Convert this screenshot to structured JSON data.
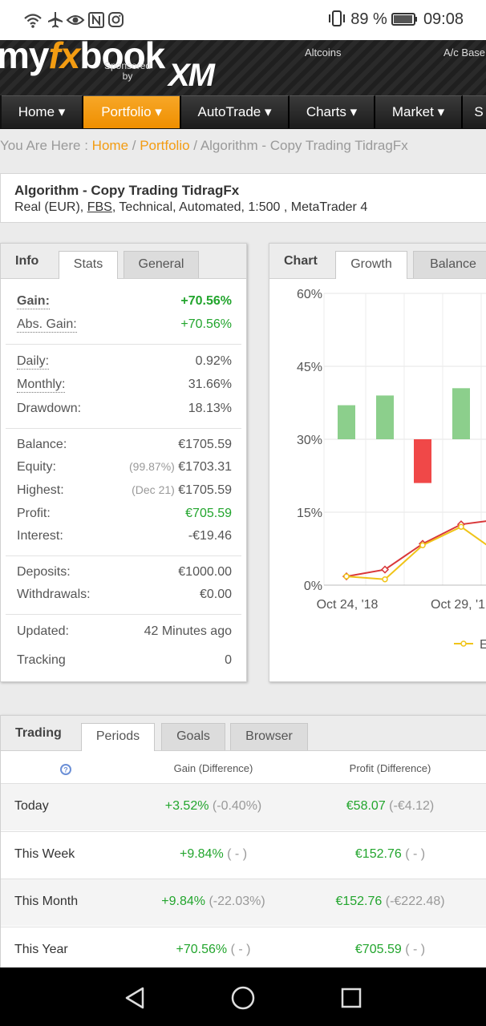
{
  "status_bar": {
    "icons": "wifi airplane eye nfc instagram",
    "battery_pct": "89 %",
    "time": "09:08"
  },
  "header": {
    "logo_my": "my",
    "logo_fx": "fx",
    "logo_book": "book",
    "sponsored": "Sponsored",
    "by": "by",
    "sponsor": "XM",
    "ticker_left": "Altcoins",
    "ticker_right": "A/c Base"
  },
  "nav": {
    "items": [
      "Home ▾",
      "Portfolio ▾",
      "AutoTrade ▾",
      "Charts ▾",
      "Market ▾",
      "S"
    ],
    "active_index": 1
  },
  "breadcrumb": {
    "prefix": "You Are Here : ",
    "home": "Home",
    "sep1": " / ",
    "portfolio": "Portfolio",
    "sep2": " / ",
    "current": "Algorithm - Copy Trading TidragFx"
  },
  "system": {
    "title": "Algorithm - Copy Trading TidragFx",
    "sub_prefix": "Real (EUR), ",
    "broker": "FBS",
    "sub_suffix": ", Technical, Automated, 1:500 , MetaTrader 4"
  },
  "info_panel": {
    "label": "Info",
    "tabs": [
      "Stats",
      "General"
    ],
    "gain_label": "Gain:",
    "gain_value": "+70.56%",
    "abs_gain_label": "Abs. Gain:",
    "abs_gain_value": "+70.56%",
    "daily_label": "Daily:",
    "daily_value": "0.92%",
    "monthly_label": "Monthly:",
    "monthly_value": "31.66%",
    "drawdown_label": "Drawdown:",
    "drawdown_value": "18.13%",
    "balance_label": "Balance:",
    "balance_value": "€1705.59",
    "equity_label": "Equity:",
    "equity_note": "(99.87%)",
    "equity_value": "€1703.31",
    "highest_label": "Highest:",
    "highest_note": "(Dec 21)",
    "highest_value": "€1705.59",
    "profit_label": "Profit:",
    "profit_value": "€705.59",
    "interest_label": "Interest:",
    "interest_value": "-€19.46",
    "deposits_label": "Deposits:",
    "deposits_value": "€1000.00",
    "withdrawals_label": "Withdrawals:",
    "withdrawals_value": "€0.00",
    "updated_label": "Updated:",
    "updated_value": "42 Minutes ago",
    "tracking_label": "Tracking",
    "tracking_value": "0"
  },
  "chart_panel": {
    "label": "Chart",
    "tabs": [
      "Growth",
      "Balance"
    ],
    "legend_label": "E"
  },
  "chart_data": {
    "type": "bar",
    "yticks": [
      "60%",
      "45%",
      "30%",
      "15%",
      "0%"
    ],
    "xticks": [
      "Oct 24, '18",
      "Oct 29, '1"
    ],
    "ylim": [
      0,
      60
    ],
    "bars": [
      {
        "x": 0,
        "from": 30,
        "to": 37,
        "color": "#8ccf8c"
      },
      {
        "x": 1,
        "from": 30,
        "to": 39,
        "color": "#8ccf8c"
      },
      {
        "x": 2,
        "from": 21,
        "to": 30,
        "color": "#f04848"
      },
      {
        "x": 3,
        "from": 30,
        "to": 40.5,
        "color": "#8ccf8c"
      }
    ],
    "series": [
      {
        "color": "#d9383a",
        "marker": "diamond",
        "values": [
          1.8,
          3.2,
          8.5,
          12.5,
          13.5
        ]
      },
      {
        "color": "#f0c419",
        "marker": "circle",
        "values": [
          1.8,
          1.2,
          8.2,
          12,
          6.5
        ]
      }
    ]
  },
  "trading_panel": {
    "label": "Trading",
    "tabs": [
      "Periods",
      "Goals",
      "Browser"
    ],
    "col_gain": "Gain (Difference)",
    "col_profit": "Profit (Difference)",
    "rows": [
      {
        "period": "Today",
        "gain": "+3.52%",
        "gain_diff": "(-0.40%)",
        "profit": "€58.07",
        "profit_diff": "(-€4.12)"
      },
      {
        "period": "This Week",
        "gain": "+9.84%",
        "gain_diff": "( - )",
        "profit": "€152.76",
        "profit_diff": "( - )"
      },
      {
        "period": "This Month",
        "gain": "+9.84%",
        "gain_diff": "(-22.03%)",
        "profit": "€152.76",
        "profit_diff": "(-€222.48)"
      },
      {
        "period": "This Year",
        "gain": "+70.56%",
        "gain_diff": "( - )",
        "profit": "€705.59",
        "profit_diff": "( - )"
      }
    ]
  },
  "colors": {
    "accent": "#f39c12",
    "positive": "#22a52d",
    "negative_bar": "#f04848",
    "positive_bar": "#8ccf8c"
  },
  "system_nav": {
    "back": "back-icon",
    "home": "home-icon",
    "recents": "recents-icon"
  }
}
